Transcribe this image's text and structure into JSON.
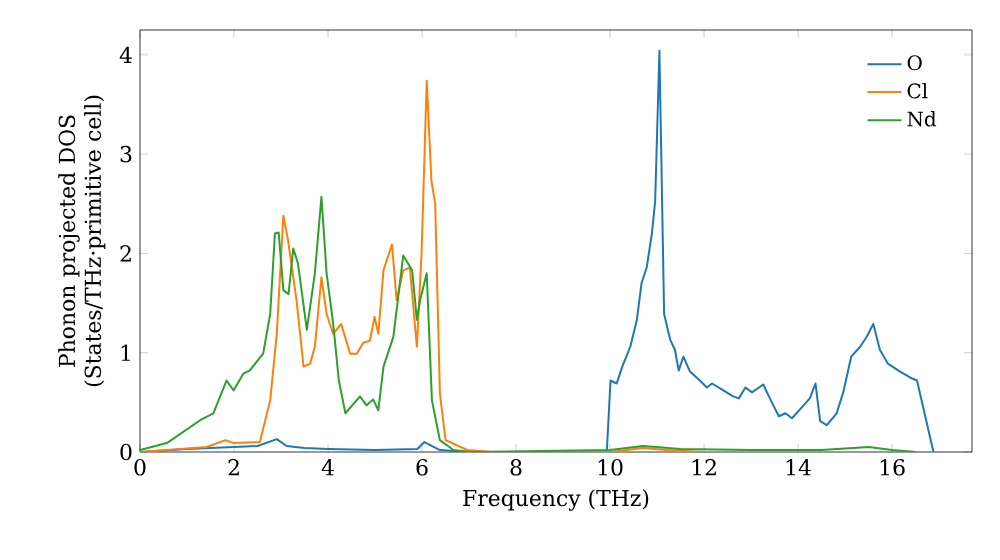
{
  "chart_data": {
    "type": "line",
    "xlabel": "Frequency (THz)",
    "ylabel": "Phonon projected DOS (States/THz·primitive cell)",
    "xlim": [
      0,
      17.7
    ],
    "ylim": [
      0,
      4.25
    ],
    "xticks": [
      0,
      2,
      4,
      6,
      8,
      10,
      12,
      14,
      16
    ],
    "yticks": [
      0,
      1,
      2,
      3,
      4
    ],
    "legend": "top right",
    "grid": false,
    "series": [
      {
        "name": "O",
        "color": "#1f77b4",
        "x": [
          0,
          1.0,
          2.0,
          2.5,
          2.91,
          3.12,
          3.5,
          4.0,
          5.0,
          5.9,
          6.05,
          6.38,
          7.0,
          9.93,
          10.01,
          10.14,
          10.26,
          10.43,
          10.57,
          10.67,
          10.78,
          10.89,
          10.96,
          11.05,
          11.15,
          11.28,
          11.38,
          11.46,
          11.56,
          11.7,
          11.91,
          12.06,
          12.17,
          12.41,
          12.62,
          12.74,
          12.88,
          13.02,
          13.26,
          13.4,
          13.59,
          13.73,
          13.87,
          14.04,
          14.25,
          14.37,
          14.47,
          14.61,
          14.82,
          14.96,
          15.13,
          15.32,
          15.46,
          15.6,
          15.74,
          15.91,
          16.17,
          16.43,
          16.53,
          16.88
        ],
        "values": [
          0,
          0.03,
          0.05,
          0.06,
          0.13,
          0.06,
          0.04,
          0.03,
          0.02,
          0.03,
          0.1,
          0.02,
          0,
          0,
          0.72,
          0.69,
          0.86,
          1.06,
          1.33,
          1.7,
          1.86,
          2.2,
          2.53,
          4.04,
          1.39,
          1.13,
          1.03,
          0.82,
          0.96,
          0.81,
          0.72,
          0.65,
          0.69,
          0.62,
          0.56,
          0.54,
          0.65,
          0.6,
          0.68,
          0.54,
          0.36,
          0.39,
          0.34,
          0.43,
          0.54,
          0.69,
          0.31,
          0.27,
          0.39,
          0.6,
          0.96,
          1.06,
          1.16,
          1.29,
          1.03,
          0.89,
          0.81,
          0.74,
          0.72,
          0
        ]
      },
      {
        "name": "Cl",
        "color": "#ff7f0e",
        "x": [
          0,
          1.42,
          1.82,
          1.99,
          2.55,
          2.77,
          2.91,
          3.05,
          3.15,
          3.33,
          3.48,
          3.62,
          3.72,
          3.86,
          3.97,
          4.11,
          4.28,
          4.47,
          4.61,
          4.75,
          4.89,
          4.99,
          5.07,
          5.18,
          5.36,
          5.46,
          5.6,
          5.74,
          5.89,
          5.99,
          6.1,
          6.2,
          6.28,
          6.38,
          6.5,
          6.96,
          7.5,
          10.0,
          10.7,
          11.2,
          12.0
        ],
        "values": [
          0,
          0.05,
          0.12,
          0.09,
          0.1,
          0.52,
          1.19,
          2.38,
          2.13,
          1.53,
          0.86,
          0.89,
          1.06,
          1.76,
          1.39,
          1.19,
          1.29,
          0.99,
          0.99,
          1.1,
          1.12,
          1.36,
          1.19,
          1.83,
          2.09,
          1.53,
          1.83,
          1.86,
          1.06,
          2.0,
          3.74,
          2.73,
          2.5,
          0.59,
          0.12,
          0.02,
          0,
          0,
          0.04,
          0.02,
          0
        ]
      },
      {
        "name": "Nd",
        "color": "#2ca02c",
        "x": [
          0,
          0.57,
          1.28,
          1.56,
          1.84,
          1.99,
          2.2,
          2.33,
          2.62,
          2.77,
          2.87,
          2.95,
          3.05,
          3.16,
          3.26,
          3.36,
          3.55,
          3.72,
          3.86,
          3.97,
          4.11,
          4.23,
          4.37,
          4.68,
          4.82,
          4.96,
          5.07,
          5.18,
          5.39,
          5.6,
          5.79,
          5.89,
          5.96,
          6.1,
          6.21,
          6.38,
          6.67,
          7.0,
          10.0,
          10.7,
          11.5,
          13.0,
          14.5,
          15.5,
          16.0,
          16.5
        ],
        "values": [
          0.02,
          0.09,
          0.32,
          0.39,
          0.72,
          0.62,
          0.79,
          0.82,
          0.99,
          1.39,
          2.2,
          2.21,
          1.63,
          1.59,
          2.05,
          1.9,
          1.23,
          1.8,
          2.57,
          1.8,
          1.29,
          0.72,
          0.39,
          0.56,
          0.47,
          0.53,
          0.42,
          0.86,
          1.16,
          1.98,
          1.83,
          1.33,
          1.53,
          1.8,
          0.52,
          0.12,
          0.02,
          0,
          0.02,
          0.06,
          0.03,
          0.02,
          0.02,
          0.05,
          0.02,
          0
        ]
      }
    ]
  }
}
